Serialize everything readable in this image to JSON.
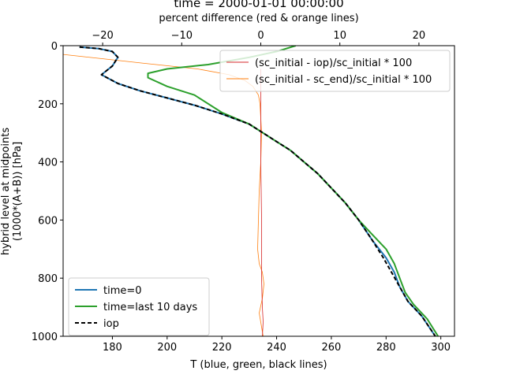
{
  "chart_data": {
    "type": "line",
    "title": "time = 2000-01-01 00:00:00",
    "xlabel": "T (blue, green, black lines)",
    "ylabel_line1": "hybrid level at midpoints",
    "ylabel_line2": "(1000*(A+B)) [hPa]",
    "top_xlabel": "percent difference (red & orange lines)",
    "xlim": [
      162,
      305
    ],
    "ylim": [
      1000,
      0
    ],
    "top_xlim": [
      -25,
      24.5
    ],
    "xticks": [
      180,
      200,
      220,
      240,
      260,
      280,
      300
    ],
    "yticks": [
      0,
      200,
      400,
      600,
      800,
      1000
    ],
    "top_xticks": [
      -20,
      -10,
      0,
      10,
      20
    ],
    "top_xtick_labels": [
      "−20",
      "−10",
      "0",
      "10",
      "20"
    ],
    "legend_lower": {
      "placement": "lower-left",
      "entries": [
        {
          "label": "time=0",
          "color": "#1f77b4",
          "style": "solid"
        },
        {
          "label": "time=last 10 days",
          "color": "#2ca02c",
          "style": "solid"
        },
        {
          "label": "iop",
          "color": "#000000",
          "style": "dashed"
        }
      ]
    },
    "legend_upper": {
      "placement": "upper-right",
      "entries": [
        {
          "label": "(sc_initial - iop)/sc_initial * 100",
          "color": "#d62728",
          "style": "solid"
        },
        {
          "label": "(sc_initial - sc_end)/sc_initial * 100",
          "color": "#ff7f0e",
          "style": "solid"
        }
      ]
    },
    "series": [
      {
        "name": "time=0",
        "axis": "bottom",
        "color": "#1f77b4",
        "dash": "",
        "width": 2,
        "points": [
          [
            168,
            5
          ],
          [
            175,
            10
          ],
          [
            180,
            20
          ],
          [
            182,
            40
          ],
          [
            180,
            70
          ],
          [
            176,
            100
          ],
          [
            182,
            130
          ],
          [
            190,
            155
          ],
          [
            200,
            180
          ],
          [
            210,
            205
          ],
          [
            220,
            235
          ],
          [
            230,
            270
          ],
          [
            235,
            300
          ],
          [
            240,
            330
          ],
          [
            245,
            360
          ],
          [
            250,
            400
          ],
          [
            255,
            440
          ],
          [
            260,
            490
          ],
          [
            265,
            540
          ],
          [
            270,
            600
          ],
          [
            275,
            670
          ],
          [
            280,
            730
          ],
          [
            283,
            780
          ],
          [
            285,
            830
          ],
          [
            288,
            880
          ],
          [
            293,
            930
          ],
          [
            298,
            1000
          ]
        ]
      },
      {
        "name": "iop",
        "axis": "bottom",
        "color": "#000000",
        "dash": "5,3",
        "width": 2,
        "points": [
          [
            168,
            5
          ],
          [
            175,
            10
          ],
          [
            180,
            20
          ],
          [
            182,
            40
          ],
          [
            180,
            70
          ],
          [
            176,
            100
          ],
          [
            182,
            130
          ],
          [
            190,
            155
          ],
          [
            200,
            180
          ],
          [
            210,
            205
          ],
          [
            220,
            235
          ],
          [
            230,
            270
          ],
          [
            235,
            300
          ],
          [
            240,
            330
          ],
          [
            245,
            360
          ],
          [
            250,
            400
          ],
          [
            255,
            440
          ],
          [
            260,
            490
          ],
          [
            265,
            540
          ],
          [
            270,
            600
          ],
          [
            275,
            670
          ],
          [
            279,
            730
          ],
          [
            282,
            780
          ],
          [
            285,
            830
          ],
          [
            288,
            880
          ],
          [
            293,
            930
          ],
          [
            298,
            1000
          ]
        ]
      },
      {
        "name": "time=last 10 days",
        "axis": "bottom",
        "color": "#2ca02c",
        "dash": "",
        "width": 2,
        "points": [
          [
            247,
            0
          ],
          [
            240,
            20
          ],
          [
            230,
            40
          ],
          [
            215,
            65
          ],
          [
            200,
            80
          ],
          [
            193,
            95
          ],
          [
            193,
            110
          ],
          [
            200,
            140
          ],
          [
            210,
            170
          ],
          [
            220,
            230
          ],
          [
            230,
            270
          ],
          [
            235,
            300
          ],
          [
            240,
            330
          ],
          [
            245,
            360
          ],
          [
            250,
            400
          ],
          [
            255,
            440
          ],
          [
            260,
            490
          ],
          [
            265,
            540
          ],
          [
            270,
            600
          ],
          [
            275,
            650
          ],
          [
            280,
            700
          ],
          [
            283,
            750
          ],
          [
            285,
            800
          ],
          [
            287,
            850
          ],
          [
            290,
            890
          ],
          [
            295,
            940
          ],
          [
            299,
            1000
          ]
        ]
      },
      {
        "name": "(sc_initial - iop)/sc_initial * 100",
        "axis": "top",
        "color": "#d62728",
        "dash": "",
        "width": 0.8,
        "points": [
          [
            0.0,
            80
          ],
          [
            0.0,
            200
          ],
          [
            0.0,
            400
          ],
          [
            0.1,
            600
          ],
          [
            0.1,
            800
          ],
          [
            0.2,
            900
          ],
          [
            0.3,
            950
          ],
          [
            0.2,
            1000
          ]
        ]
      },
      {
        "name": "(sc_initial - sc_end)/sc_initial * 100",
        "axis": "top",
        "color": "#ff7f0e",
        "dash": "",
        "width": 0.8,
        "points": [
          [
            -25,
            30
          ],
          [
            -15,
            60
          ],
          [
            -8,
            80
          ],
          [
            -4,
            100
          ],
          [
            -2,
            120
          ],
          [
            -1,
            140
          ],
          [
            -0.3,
            170
          ],
          [
            -0.1,
            200
          ],
          [
            0,
            250
          ],
          [
            0.1,
            300
          ],
          [
            0,
            400
          ],
          [
            -0.2,
            500
          ],
          [
            -0.3,
            600
          ],
          [
            -0.4,
            700
          ],
          [
            -0.2,
            750
          ],
          [
            0.2,
            780
          ],
          [
            0.4,
            820
          ],
          [
            0.2,
            870
          ],
          [
            -0.2,
            920
          ],
          [
            0.3,
            1000
          ]
        ]
      }
    ]
  }
}
